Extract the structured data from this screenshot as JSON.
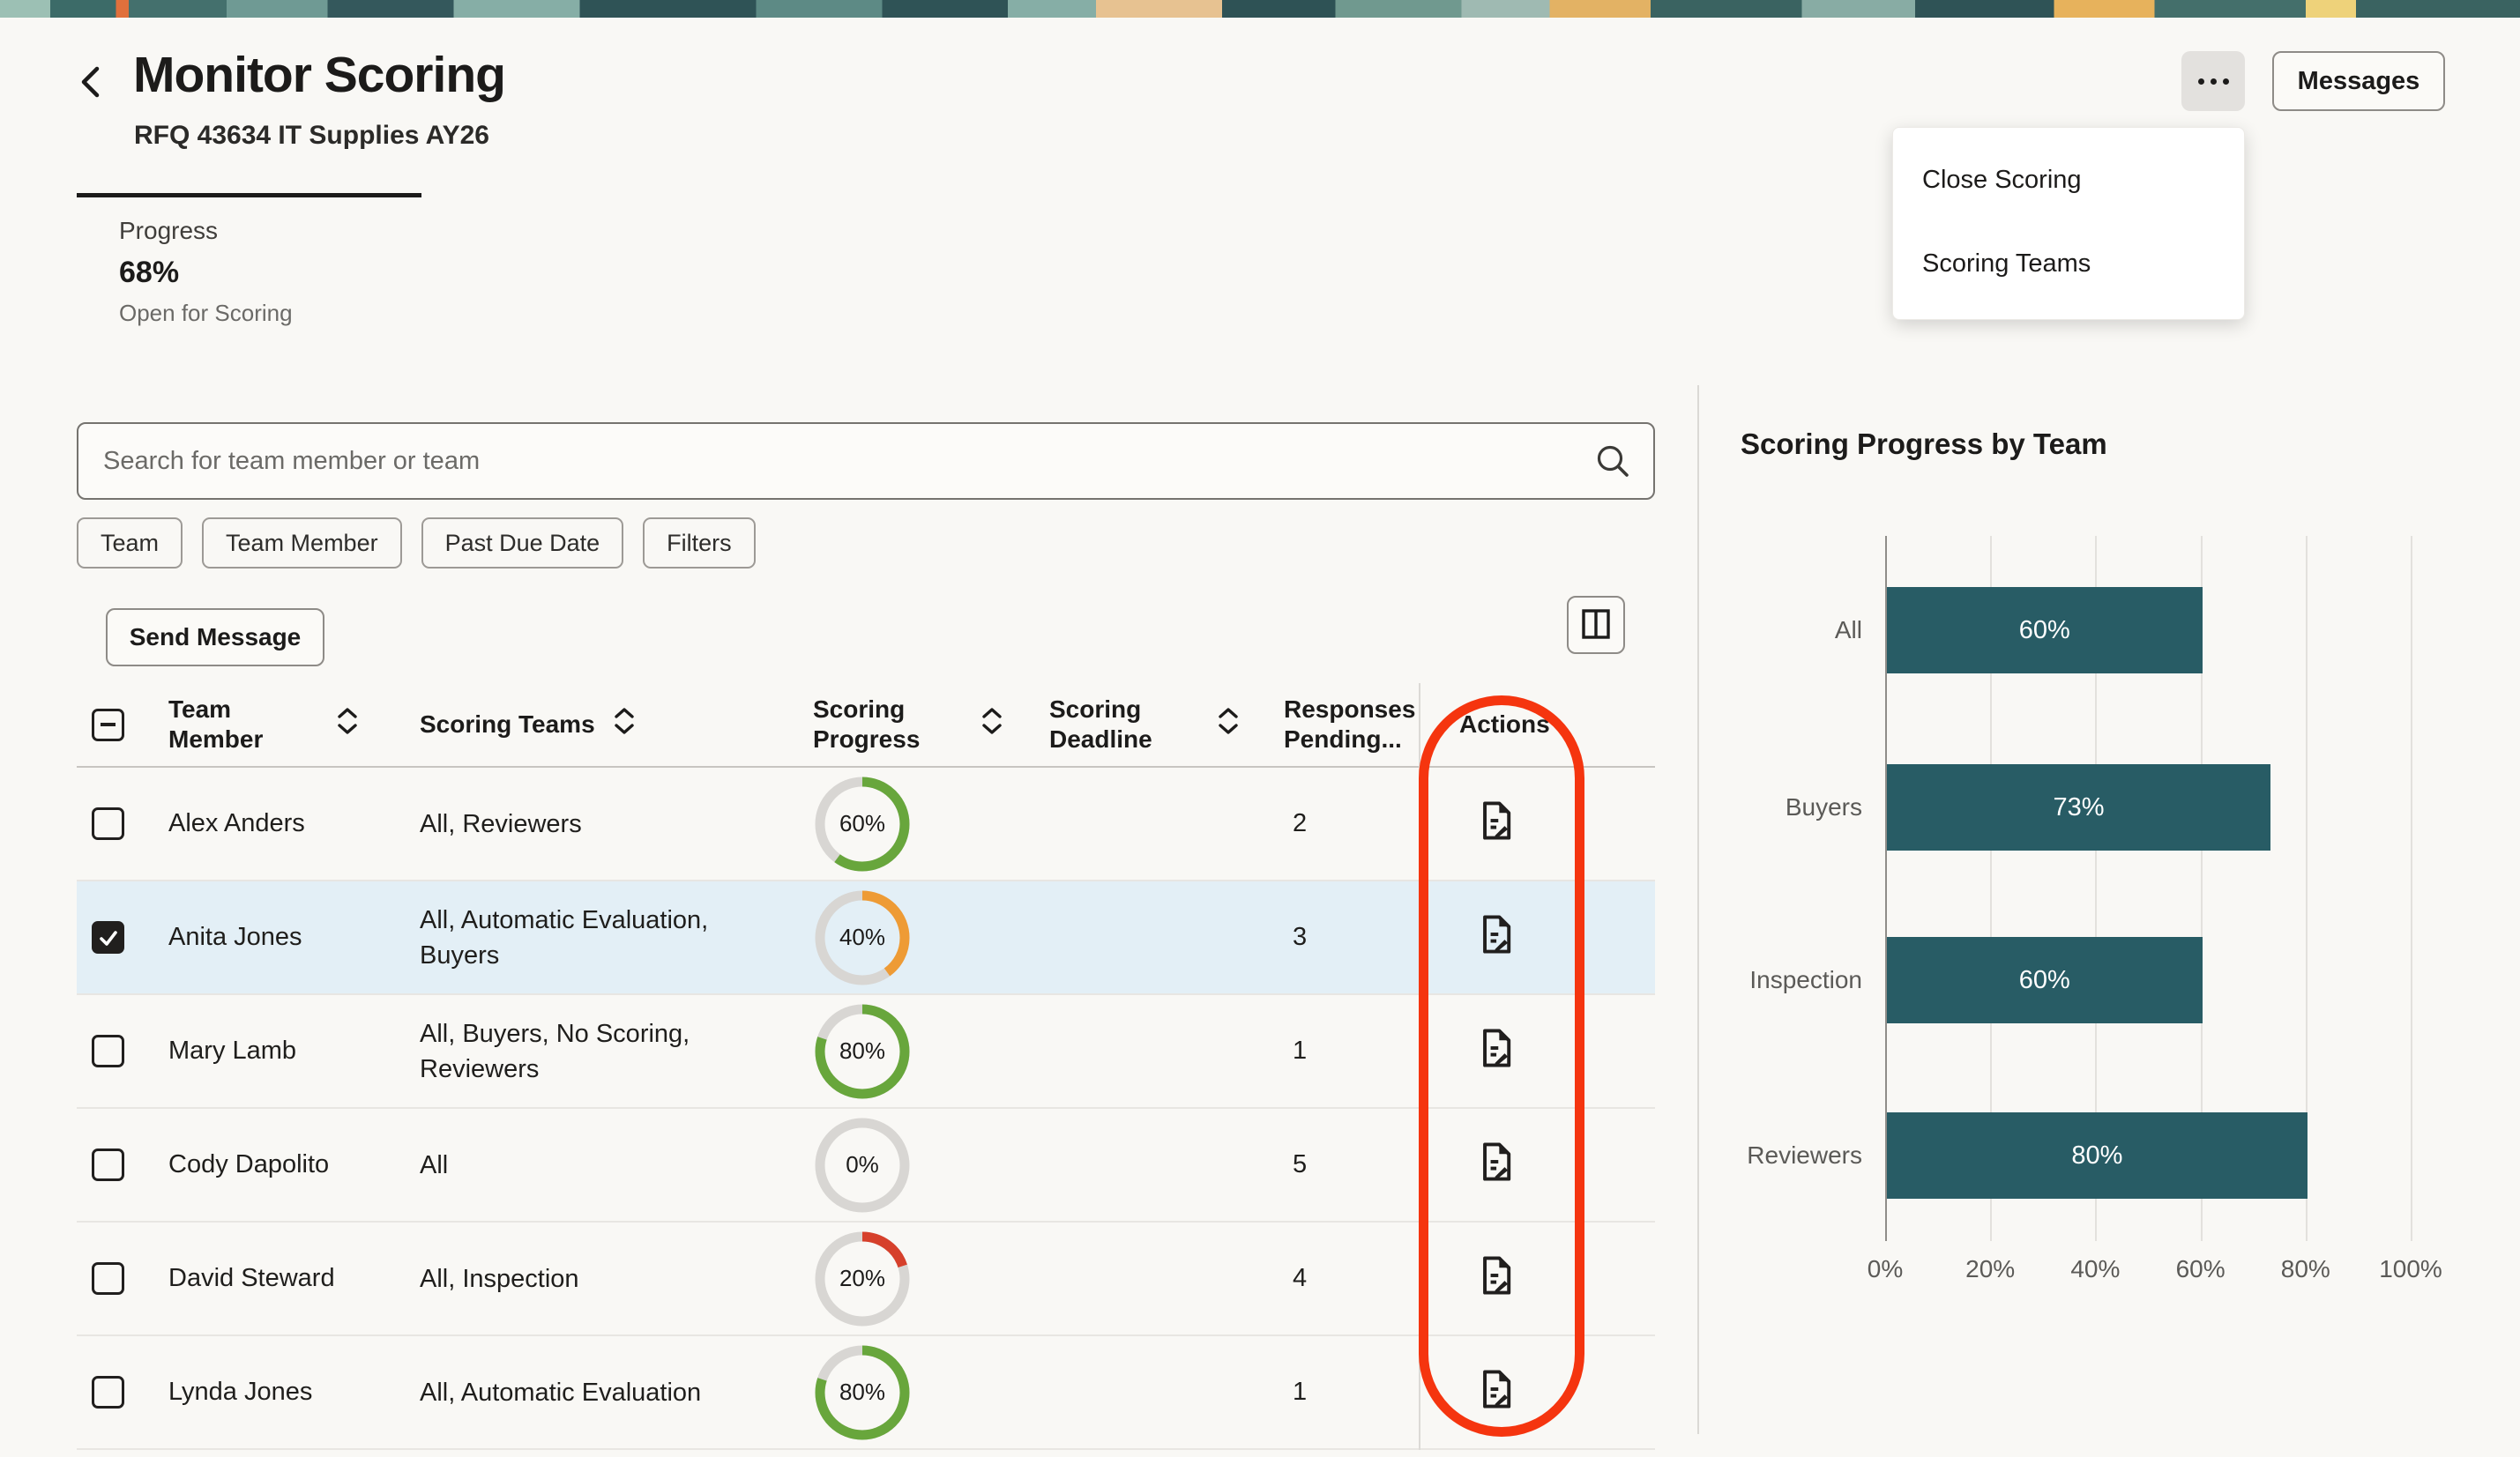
{
  "header": {
    "title": "Monitor Scoring",
    "subtitle": "RFQ 43634 IT Supplies AY26",
    "progress_label": "Progress",
    "progress_value": "68%",
    "progress_status": "Open for Scoring",
    "messages_label": "Messages"
  },
  "menu": {
    "items": [
      "Close Scoring",
      "Scoring Teams"
    ]
  },
  "search": {
    "placeholder": "Search for team member or team"
  },
  "filter_chips": [
    "Team",
    "Team Member",
    "Past Due Date",
    "Filters"
  ],
  "toolbar": {
    "send_message_label": "Send Message"
  },
  "table": {
    "columns": [
      "Team Member",
      "Scoring Teams",
      "Scoring Progress",
      "Scoring Deadline",
      "Responses Pending...",
      "Actions"
    ],
    "rows": [
      {
        "name": "Alex Anders",
        "teams": "All, Reviewers",
        "progress": 60,
        "progress_label": "60%",
        "ring_color": "#68a63c",
        "deadline": "",
        "pending": "2",
        "checked": false,
        "selected": false
      },
      {
        "name": "Anita Jones",
        "teams": "All, Automatic Evaluation, Buyers",
        "progress": 40,
        "progress_label": "40%",
        "ring_color": "#ee9b35",
        "deadline": "",
        "pending": "3",
        "checked": true,
        "selected": true
      },
      {
        "name": "Mary Lamb",
        "teams": "All, Buyers, No Scoring, Reviewers",
        "progress": 80,
        "progress_label": "80%",
        "ring_color": "#68a63c",
        "deadline": "",
        "pending": "1",
        "checked": false,
        "selected": false
      },
      {
        "name": "Cody Dapolito",
        "teams": "All",
        "progress": 0,
        "progress_label": "0%",
        "ring_color": "#d8d6d3",
        "deadline": "",
        "pending": "5",
        "checked": false,
        "selected": false
      },
      {
        "name": "David Steward",
        "teams": "All, Inspection",
        "progress": 20,
        "progress_label": "20%",
        "ring_color": "#d6402b",
        "deadline": "",
        "pending": "4",
        "checked": false,
        "selected": false
      },
      {
        "name": "Lynda Jones",
        "teams": "All, Automatic Evaluation",
        "progress": 80,
        "progress_label": "80%",
        "ring_color": "#68a63c",
        "deadline": "",
        "pending": "1",
        "checked": false,
        "selected": false
      }
    ]
  },
  "chart_data": {
    "type": "bar",
    "orientation": "horizontal",
    "title": "Scoring Progress by Team",
    "categories": [
      "All",
      "Buyers",
      "Inspection",
      "Reviewers"
    ],
    "values": [
      60,
      73,
      60,
      80
    ],
    "value_labels": [
      "60%",
      "73%",
      "60%",
      "80%"
    ],
    "xticks": [
      "0%",
      "20%",
      "40%",
      "60%",
      "80%",
      "100%"
    ],
    "xlim": [
      0,
      100
    ],
    "grid": true,
    "legend": false,
    "bar_color": "#285c65"
  },
  "colors": {
    "accent_teal": "#285c65",
    "ring_green": "#68a63c",
    "ring_orange": "#ee9b35",
    "ring_red": "#d6402b",
    "ring_track": "#d8d6d3",
    "selected_row": "#e3eff6",
    "annotation_red": "#f5350f"
  }
}
